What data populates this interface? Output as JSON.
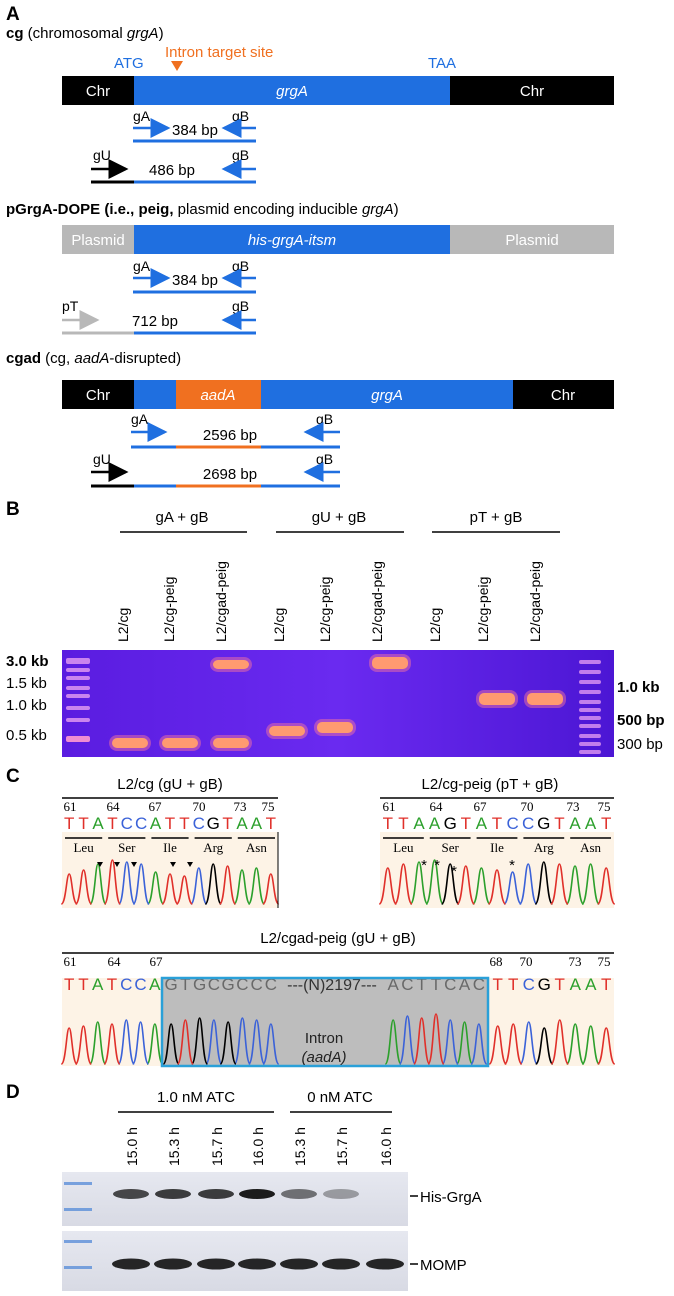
{
  "panelA": {
    "letter": "A",
    "cg": {
      "title_bold": "cg",
      "title_pre": " (chromosomal ",
      "title_ital": "grgA",
      "title_post": ")",
      "atg": "ATG",
      "intron_site": "Intron target site",
      "taa": "TAA",
      "chr_left": "Chr",
      "gene": "grgA",
      "chr_right": "Chr",
      "primer_gA": "gA",
      "primer_gB": "gB",
      "primer_gU": "gU",
      "size1": "384 bp",
      "size2": "486 bp"
    },
    "peig": {
      "title_bold": "pGrgA-DOPE (i.e., peig,",
      "title_pre": " plasmid encoding inducible ",
      "title_ital": "grgA",
      "title_post": ")",
      "plasmid_left": "Plasmid",
      "gene": "his-grgA-itsm",
      "plasmid_right": "Plasmid",
      "primer_gA": "gA",
      "primer_gB": "gB",
      "primer_pT": "pT",
      "size1": "384 bp",
      "size2": "712 bp"
    },
    "cgad": {
      "title_bold": "cgad",
      "title_pre": " (cg, ",
      "title_ital": "aadA",
      "title_post": "-disrupted)",
      "chr_left": "Chr",
      "insert": "aadA",
      "gene": "grgA",
      "chr_right": "Chr",
      "primer_gA": "gA",
      "primer_gB": "gB",
      "primer_gU": "gU",
      "size1": "2596 bp",
      "size2": "2698 bp"
    }
  },
  "panelB": {
    "letter": "B",
    "groups": [
      "gA + gB",
      "gU + gB",
      "pT + gB"
    ],
    "lanes": [
      "L2/cg",
      "L2/cg-peig",
      "L2/cgad-peig",
      "L2/cg",
      "L2/cg-peig",
      "L2/cgad-peig",
      "L2/cg",
      "L2/cg-peig",
      "L2/cgad-peig"
    ],
    "left_markers": [
      "3.0 kb",
      "1.5 kb",
      "1.0 kb",
      "0.5 kb"
    ],
    "right_markers": [
      "1.0 kb",
      "500 bp",
      "300 bp"
    ]
  },
  "panelC": {
    "letter": "C",
    "chrom1": {
      "title": "L2/cg (gU + gB)",
      "positions": [
        "61",
        "64",
        "67",
        "70",
        "73",
        "75"
      ],
      "bases": [
        "T",
        "T",
        "A",
        "T",
        "C",
        "C",
        "A",
        "T",
        "T",
        "C",
        "G",
        "T",
        "A",
        "A",
        "T"
      ],
      "aas": [
        "Leu",
        "Ser",
        "Ile",
        "Arg",
        "Asn"
      ]
    },
    "chrom2": {
      "title": "L2/cg-peig (pT + gB)",
      "positions": [
        "61",
        "64",
        "67",
        "70",
        "73",
        "75"
      ],
      "bases": [
        "T",
        "T",
        "A",
        "A",
        "G",
        "T",
        "A",
        "T",
        "C",
        "C",
        "G",
        "T",
        "A",
        "A",
        "T"
      ],
      "aas": [
        "Leu",
        "Ser",
        "Ile",
        "Arg",
        "Asn"
      ],
      "marks": [
        "*",
        "*",
        "*",
        "*"
      ]
    },
    "chrom3": {
      "title": "L2/cgad-peig (gU + gB)",
      "positions": [
        "61",
        "64",
        "67",
        "68",
        "70",
        "73",
        "75"
      ],
      "bases_left": "TTATCCA",
      "bases_mid1": "GTGCGCCC",
      "gap": "---(N)2197---",
      "bases_mid2": "ACTTCAC",
      "bases_right": "TTCGTAAT",
      "intron_label": "Intron",
      "intron_ital": "(aadA)"
    }
  },
  "panelD": {
    "letter": "D",
    "groups": [
      "1.0 nM ATC",
      "0 nM ATC"
    ],
    "lanes": [
      "15.0 h",
      "15.3 h",
      "15.7 h",
      "16.0 h",
      "15.3 h",
      "15.7 h",
      "16.0 h"
    ],
    "blot1_label": "His-GrgA",
    "blot2_label": "MOMP",
    "his_levels": [
      0.75,
      0.8,
      0.8,
      0.95,
      0.55,
      0.35,
      0.0
    ]
  },
  "colors": {
    "blue": "#1f6fe0",
    "orange": "#f07020",
    "gray": "#b8b8b8",
    "gel_bg": "#5b1ee6",
    "band": "#ff9a70"
  }
}
